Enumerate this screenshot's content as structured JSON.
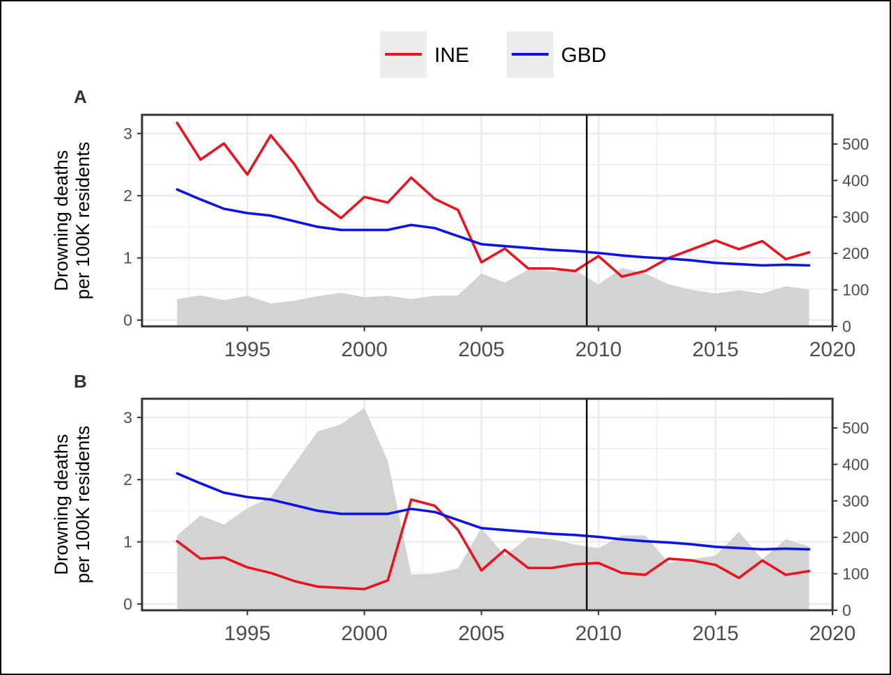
{
  "legend": {
    "items": [
      {
        "label": "INE",
        "color": "#e8141e"
      },
      {
        "label": "GBD",
        "color": "#0a14e6"
      }
    ]
  },
  "colors": {
    "ine": "#e8141e",
    "gbd": "#0a14e6",
    "area": "#d3d3d3",
    "vline": "#000000",
    "grid": "#ebebeb"
  },
  "chart_data": [
    {
      "type": "line",
      "panel_tag": "A",
      "ylabel_lines": [
        "Drowning deaths",
        "per 100K residents"
      ],
      "xlim": [
        1990.5,
        2020.0
      ],
      "x_ticks": [
        1995,
        2000,
        2005,
        2010,
        2015,
        2020
      ],
      "ylim_left": [
        -0.1,
        3.3
      ],
      "y_ticks_left": [
        0,
        1,
        2,
        3
      ],
      "ylim_right": [
        0,
        580
      ],
      "y_ticks_right": [
        0,
        100,
        200,
        300,
        400,
        500
      ],
      "vline_x": 2009.5,
      "x": [
        1992,
        1993,
        1994,
        1995,
        1996,
        1997,
        1998,
        1999,
        2000,
        2001,
        2002,
        2003,
        2004,
        2005,
        2006,
        2007,
        2008,
        2009,
        2010,
        2011,
        2012,
        2013,
        2014,
        2015,
        2016,
        2017,
        2018,
        2019
      ],
      "series": [
        {
          "name": "INE",
          "axis": "left",
          "values": [
            3.17,
            2.58,
            2.84,
            2.34,
            2.97,
            2.51,
            1.92,
            1.64,
            1.98,
            1.89,
            2.29,
            1.95,
            1.77,
            0.93,
            1.15,
            0.83,
            0.83,
            0.79,
            1.03,
            0.7,
            0.79,
            1.0,
            1.14,
            1.28,
            1.14,
            1.27,
            0.98,
            1.09
          ]
        },
        {
          "name": "GBD",
          "axis": "left",
          "values": [
            2.1,
            1.94,
            1.79,
            1.72,
            1.68,
            1.59,
            1.5,
            1.45,
            1.45,
            1.45,
            1.53,
            1.48,
            1.35,
            1.22,
            1.19,
            1.16,
            1.13,
            1.11,
            1.08,
            1.04,
            1.01,
            0.99,
            0.96,
            0.92,
            0.9,
            0.88,
            0.89,
            0.88
          ]
        },
        {
          "axis": "right",
          "type": "area",
          "values": [
            75,
            85,
            72,
            84,
            63,
            70,
            83,
            92,
            80,
            84,
            75,
            84,
            85,
            145,
            120,
            155,
            151,
            155,
            115,
            160,
            145,
            115,
            100,
            90,
            99,
            90,
            110,
            101
          ]
        }
      ]
    },
    {
      "type": "line",
      "panel_tag": "B",
      "ylabel_lines": [
        "Drowning deaths",
        "per 100K residents"
      ],
      "xlim": [
        1990.5,
        2020.0
      ],
      "x_ticks": [
        1995,
        2000,
        2005,
        2010,
        2015,
        2020
      ],
      "ylim_left": [
        -0.1,
        3.3
      ],
      "y_ticks_left": [
        0,
        1,
        2,
        3
      ],
      "ylim_right": [
        0,
        580
      ],
      "y_ticks_right": [
        0,
        100,
        200,
        300,
        400,
        500
      ],
      "vline_x": 2009.5,
      "x": [
        1992,
        1993,
        1994,
        1995,
        1996,
        1997,
        1998,
        1999,
        2000,
        2001,
        2002,
        2003,
        2004,
        2005,
        2006,
        2007,
        2008,
        2009,
        2010,
        2011,
        2012,
        2013,
        2014,
        2015,
        2016,
        2017,
        2018,
        2019
      ],
      "series": [
        {
          "name": "INE",
          "axis": "left",
          "values": [
            1.01,
            0.73,
            0.75,
            0.59,
            0.5,
            0.37,
            0.28,
            0.26,
            0.24,
            0.38,
            1.68,
            1.58,
            1.19,
            0.54,
            0.87,
            0.58,
            0.58,
            0.64,
            0.66,
            0.5,
            0.47,
            0.73,
            0.7,
            0.63,
            0.42,
            0.7,
            0.47,
            0.53
          ]
        },
        {
          "name": "GBD",
          "axis": "left",
          "values": [
            2.1,
            1.94,
            1.79,
            1.72,
            1.68,
            1.59,
            1.5,
            1.45,
            1.45,
            1.45,
            1.53,
            1.48,
            1.35,
            1.22,
            1.19,
            1.16,
            1.13,
            1.11,
            1.08,
            1.04,
            1.01,
            0.99,
            0.96,
            0.92,
            0.9,
            0.88,
            0.89,
            0.88
          ]
        },
        {
          "axis": "right",
          "type": "area",
          "values": [
            205,
            260,
            235,
            280,
            310,
            400,
            490,
            510,
            555,
            410,
            98,
            100,
            115,
            225,
            150,
            200,
            195,
            180,
            170,
            205,
            205,
            130,
            140,
            150,
            215,
            140,
            195,
            175
          ]
        }
      ]
    }
  ]
}
